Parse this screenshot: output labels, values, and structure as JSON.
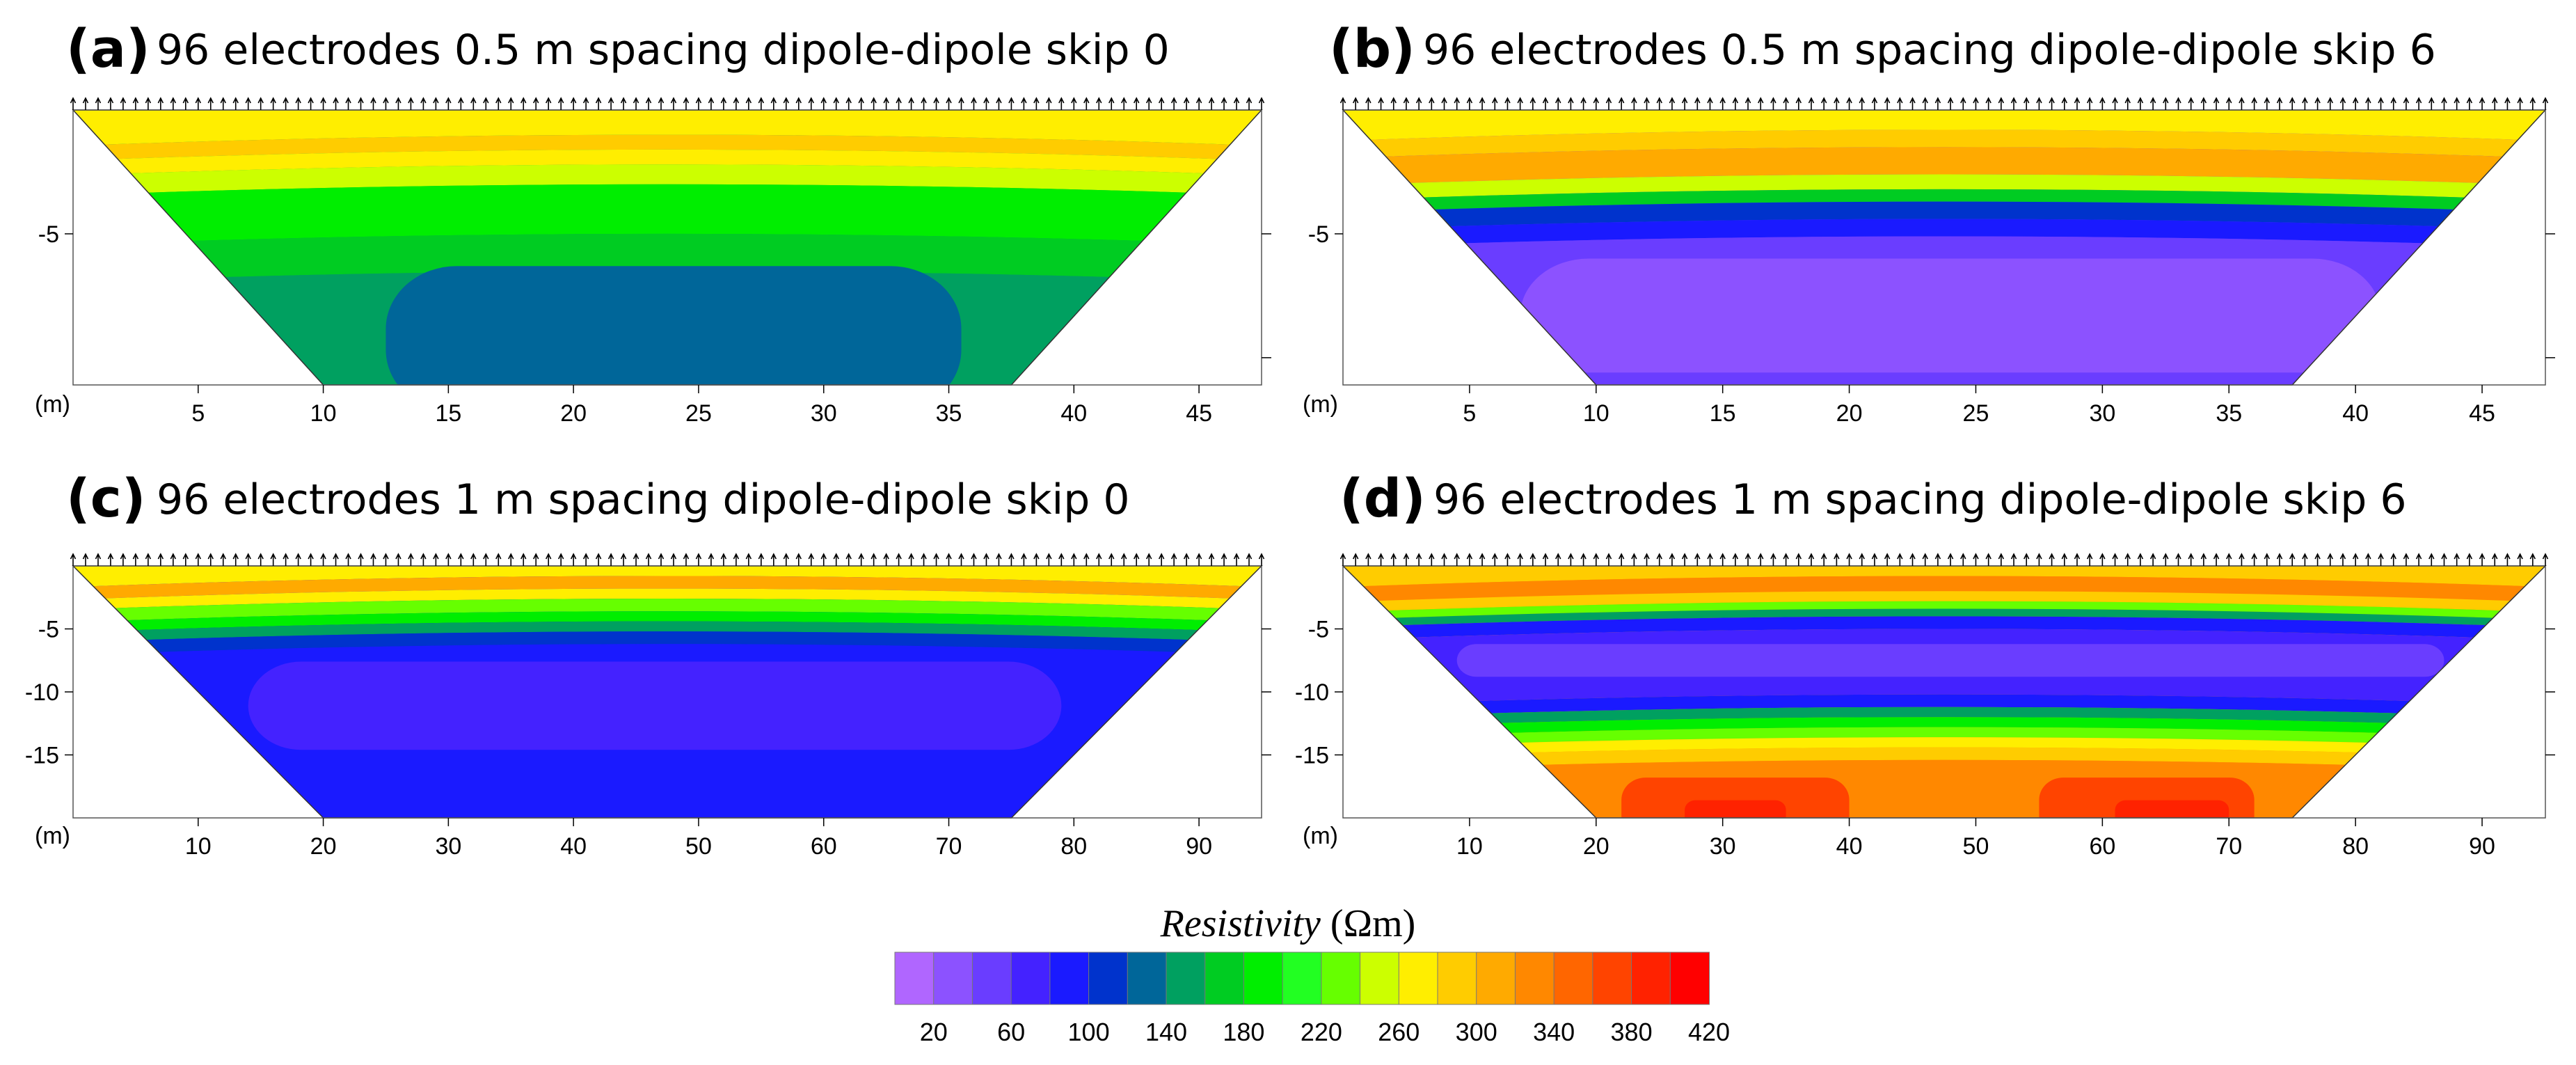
{
  "chart_data": [
    {
      "type": "heatmap",
      "panel": "(a)",
      "title": "96 electrodes 0.5 m spacing dipole-dipole skip 0",
      "xlabel": "(m)",
      "xlim": [
        0,
        47.5
      ],
      "ylim": [
        -11.1,
        0
      ],
      "xticks": [
        5,
        10,
        15,
        20,
        25,
        30,
        35,
        40,
        45
      ],
      "yticks": [
        -5
      ],
      "electrodes": 96,
      "bottom_x_range": [
        10,
        37.5
      ],
      "layers": [
        {
          "top": 0,
          "bottom": -1.0,
          "resistivity": 265
        },
        {
          "top": -1.0,
          "bottom": -1.6,
          "resistivity": 295
        },
        {
          "top": -1.6,
          "bottom": -2.2,
          "resistivity": 262
        },
        {
          "top": -2.2,
          "bottom": -3.0,
          "resistivity": 245
        },
        {
          "top": -3.0,
          "bottom": -5.0,
          "resistivity": 195
        },
        {
          "top": -5.0,
          "bottom": -6.5,
          "resistivity": 170
        },
        {
          "top": -6.5,
          "bottom": -11.1,
          "resistivity": 140
        }
      ],
      "anomalies": [
        {
          "x_range": [
            12.5,
            35.5
          ],
          "depth_range": [
            -6.3,
            -11.1
          ],
          "resistivity": 125
        }
      ]
    },
    {
      "type": "heatmap",
      "panel": "(b)",
      "title": "96 electrodes 0.5 m spacing dipole-dipole skip 6",
      "xlabel": "(m)",
      "xlim": [
        0,
        47.5
      ],
      "ylim": [
        -11.1,
        0
      ],
      "xticks": [
        5,
        10,
        15,
        20,
        25,
        30,
        35,
        40,
        45
      ],
      "yticks": [
        -5
      ],
      "electrodes": 96,
      "bottom_x_range": [
        10,
        37.5
      ],
      "layers": [
        {
          "top": 0,
          "bottom": -0.8,
          "resistivity": 270
        },
        {
          "top": -0.8,
          "bottom": -1.5,
          "resistivity": 295
        },
        {
          "top": -1.5,
          "bottom": -2.6,
          "resistivity": 310
        },
        {
          "top": -2.6,
          "bottom": -3.2,
          "resistivity": 240
        },
        {
          "top": -3.2,
          "bottom": -3.7,
          "resistivity": 160
        },
        {
          "top": -3.7,
          "bottom": -4.4,
          "resistivity": 100
        },
        {
          "top": -4.4,
          "bottom": -5.1,
          "resistivity": 80
        },
        {
          "top": -5.1,
          "bottom": -11.1,
          "resistivity": 55
        }
      ],
      "anomalies": [
        {
          "x_range": [
            7,
            41
          ],
          "depth_range": [
            -6.0,
            -10.6
          ],
          "resistivity": 38
        }
      ]
    },
    {
      "type": "heatmap",
      "panel": "(c)",
      "title": "96 electrodes 1 m spacing dipole-dipole skip 0",
      "xlabel": "(m)",
      "xlim": [
        0,
        95
      ],
      "ylim": [
        -20,
        0
      ],
      "xticks": [
        10,
        20,
        30,
        40,
        50,
        60,
        70,
        80,
        90
      ],
      "yticks": [
        -5,
        -10,
        -15
      ],
      "electrodes": 96,
      "bottom_x_range": [
        20,
        75
      ],
      "layers": [
        {
          "top": 0,
          "bottom": -0.8,
          "resistivity": 275
        },
        {
          "top": -0.8,
          "bottom": -1.8,
          "resistivity": 300
        },
        {
          "top": -1.8,
          "bottom": -2.6,
          "resistivity": 262
        },
        {
          "top": -2.6,
          "bottom": -3.6,
          "resistivity": 220
        },
        {
          "top": -3.6,
          "bottom": -4.4,
          "resistivity": 180
        },
        {
          "top": -4.4,
          "bottom": -5.2,
          "resistivity": 140
        },
        {
          "top": -5.2,
          "bottom": -6.2,
          "resistivity": 100
        },
        {
          "top": -6.2,
          "bottom": -20,
          "resistivity": 82
        }
      ],
      "anomalies": [
        {
          "x_range": [
            14,
            79
          ],
          "depth_range": [
            -7.6,
            -14.6
          ],
          "resistivity": 60
        }
      ]
    },
    {
      "type": "heatmap",
      "panel": "(d)",
      "title": "96 electrodes 1 m spacing dipole-dipole skip 6",
      "xlabel": "(m)",
      "xlim": [
        0,
        95
      ],
      "ylim": [
        -20,
        0
      ],
      "xticks": [
        10,
        20,
        30,
        40,
        50,
        60,
        70,
        80,
        90
      ],
      "yticks": [
        -5,
        -10,
        -15
      ],
      "electrodes": 96,
      "bottom_x_range": [
        20,
        75
      ],
      "layers": [
        {
          "top": 0,
          "bottom": -0.8,
          "resistivity": 290
        },
        {
          "top": -0.8,
          "bottom": -2.0,
          "resistivity": 320
        },
        {
          "top": -2.0,
          "bottom": -2.8,
          "resistivity": 290
        },
        {
          "top": -2.8,
          "bottom": -3.4,
          "resistivity": 220
        },
        {
          "top": -3.4,
          "bottom": -4.0,
          "resistivity": 150
        },
        {
          "top": -4.0,
          "bottom": -5.0,
          "resistivity": 95
        },
        {
          "top": -5.0,
          "bottom": -10.2,
          "resistivity": 62
        },
        {
          "top": -10.2,
          "bottom": -11.2,
          "resistivity": 95
        },
        {
          "top": -11.2,
          "bottom": -12.0,
          "resistivity": 140
        },
        {
          "top": -12.0,
          "bottom": -12.8,
          "resistivity": 180
        },
        {
          "top": -12.8,
          "bottom": -13.6,
          "resistivity": 220
        },
        {
          "top": -13.6,
          "bottom": -14.4,
          "resistivity": 262
        },
        {
          "top": -14.4,
          "bottom": -15.4,
          "resistivity": 295
        },
        {
          "top": -15.4,
          "bottom": -20,
          "resistivity": 325
        }
      ],
      "anomalies": [
        {
          "x_range": [
            9,
            87
          ],
          "depth_range": [
            -6.2,
            -8.8
          ],
          "resistivity": 42
        },
        {
          "x_range": [
            22,
            40
          ],
          "depth_range": [
            -16.8,
            -20
          ],
          "resistivity": 365
        },
        {
          "x_range": [
            55,
            72
          ],
          "depth_range": [
            -16.8,
            -20
          ],
          "resistivity": 365
        },
        {
          "x_range": [
            27,
            35
          ],
          "depth_range": [
            -18.6,
            -20
          ],
          "resistivity": 395
        },
        {
          "x_range": [
            61,
            70
          ],
          "depth_range": [
            -18.6,
            -20
          ],
          "resistivity": 395
        }
      ]
    }
  ],
  "colorbar": {
    "title_italic": "Resistivity",
    "title_unit": " (Ωm)",
    "tick_labels": [
      "20",
      "60",
      "100",
      "140",
      "180",
      "220",
      "260",
      "300",
      "340",
      "380",
      "420"
    ],
    "bins": [
      {
        "min": 0,
        "max": 20,
        "color": "#b066ff"
      },
      {
        "min": 20,
        "max": 40,
        "color": "#8c52ff"
      },
      {
        "min": 40,
        "max": 60,
        "color": "#6a3dff"
      },
      {
        "min": 60,
        "max": 80,
        "color": "#4422ff"
      },
      {
        "min": 80,
        "max": 100,
        "color": "#1a1aff"
      },
      {
        "min": 100,
        "max": 120,
        "color": "#0033cc"
      },
      {
        "min": 120,
        "max": 140,
        "color": "#006699"
      },
      {
        "min": 140,
        "max": 160,
        "color": "#00a060"
      },
      {
        "min": 160,
        "max": 180,
        "color": "#00cc22"
      },
      {
        "min": 180,
        "max": 200,
        "color": "#00ee00"
      },
      {
        "min": 200,
        "max": 220,
        "color": "#22ff22"
      },
      {
        "min": 220,
        "max": 240,
        "color": "#66ff00"
      },
      {
        "min": 240,
        "max": 260,
        "color": "#ccff00"
      },
      {
        "min": 260,
        "max": 280,
        "color": "#ffee00"
      },
      {
        "min": 280,
        "max": 300,
        "color": "#ffcc00"
      },
      {
        "min": 300,
        "max": 320,
        "color": "#ffaa00"
      },
      {
        "min": 320,
        "max": 340,
        "color": "#ff8800"
      },
      {
        "min": 340,
        "max": 360,
        "color": "#ff6600"
      },
      {
        "min": 360,
        "max": 380,
        "color": "#ff4400"
      },
      {
        "min": 380,
        "max": 400,
        "color": "#ff2200"
      },
      {
        "min": 400,
        "max": 440,
        "color": "#ff0000"
      }
    ]
  }
}
